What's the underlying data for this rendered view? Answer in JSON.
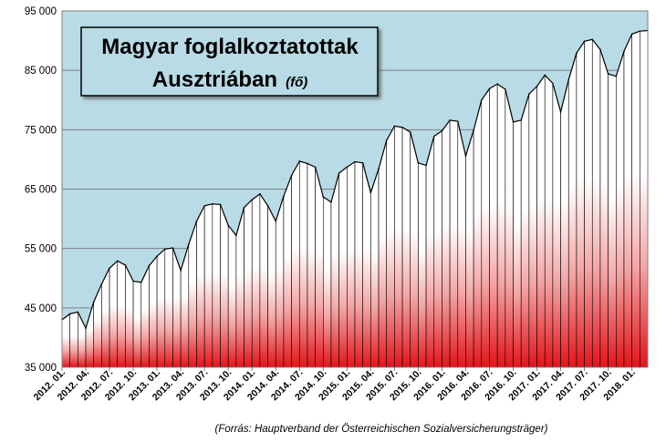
{
  "chart_data": {
    "type": "area",
    "title": "Magyar foglalkoztatottak",
    "title_line2": "Ausztriában",
    "title_unit": "(fő)",
    "source": "(Forrás:  Hauptverband der Österreichischen  Sozialversicherungsträger)",
    "ylim": [
      35000,
      95000
    ],
    "yticks": [
      "35 000",
      "45 000",
      "55 000",
      "65 000",
      "75 000",
      "85 000",
      "95 000"
    ],
    "xtick_labels": [
      "2012. 01.",
      "2012. 04.",
      "2012. 07.",
      "2012. 10.",
      "2013. 01.",
      "2013. 04.",
      "2013. 07.",
      "2013. 10.",
      "2014. 01.",
      "2014. 04.",
      "2014. 07.",
      "2014. 10.",
      "2015. 01.",
      "2015. 04.",
      "2015. 07.",
      "2015. 10.",
      "2016. 01.",
      "2016. 04.",
      "2016. 07.",
      "2016. 10.",
      "2017. 01.",
      "2017. 04.",
      "2017. 07.",
      "2017. 10.",
      "2018. 01."
    ],
    "grid": true,
    "colors": {
      "plot_bg": "#b8dbe6",
      "fill_top": "#ffffff",
      "fill_bottom": "#e8141a",
      "title_box": "#b8dbe6"
    },
    "x_start": "2012-01",
    "values": [
      43000,
      44000,
      44300,
      41600,
      46000,
      49000,
      51700,
      52900,
      52200,
      49500,
      49300,
      52100,
      53700,
      54900,
      55100,
      51300,
      55700,
      59600,
      62200,
      62500,
      62400,
      58900,
      57200,
      61900,
      63200,
      64200,
      62200,
      59600,
      63800,
      67300,
      69700,
      69300,
      68700,
      63700,
      62800,
      67700,
      68700,
      69600,
      69400,
      64400,
      68400,
      73200,
      75600,
      75400,
      74600,
      69400,
      69000,
      73900,
      74800,
      76600,
      76400,
      70600,
      74900,
      80000,
      81900,
      82700,
      81800,
      76300,
      76600,
      81000,
      82300,
      84200,
      82800,
      78000,
      83400,
      87900,
      89900,
      90200,
      88500,
      84400,
      84000,
      88200,
      91100,
      91600,
      91700
    ]
  }
}
